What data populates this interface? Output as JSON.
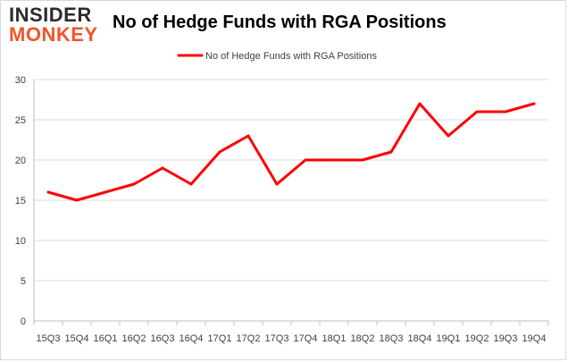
{
  "brand": {
    "logo_top": "INSIDER",
    "logo_bottom": "MONKEY",
    "colors": {
      "dark": "#2b2b2b",
      "orange": "#f0552a"
    }
  },
  "chart_data": {
    "type": "line",
    "title": "No of Hedge Funds with RGA Positions",
    "xlabel": "",
    "ylabel": "",
    "categories": [
      "15Q3",
      "15Q4",
      "16Q1",
      "16Q2",
      "16Q3",
      "16Q4",
      "17Q1",
      "17Q2",
      "17Q3",
      "17Q4",
      "18Q1",
      "18Q2",
      "18Q3",
      "18Q4",
      "19Q1",
      "19Q2",
      "19Q3",
      "19Q4"
    ],
    "series": [
      {
        "name": "No of Hedge Funds with RGA Positions",
        "color": "#ff0000",
        "values": [
          16,
          15,
          16,
          17,
          19,
          17,
          21,
          23,
          17,
          20,
          20,
          20,
          21,
          27,
          23,
          26,
          26,
          27
        ]
      }
    ],
    "ylim": [
      0,
      30
    ],
    "yticks": [
      0,
      5,
      10,
      15,
      20,
      25,
      30
    ],
    "grid": true,
    "legend_position": "top-center"
  }
}
